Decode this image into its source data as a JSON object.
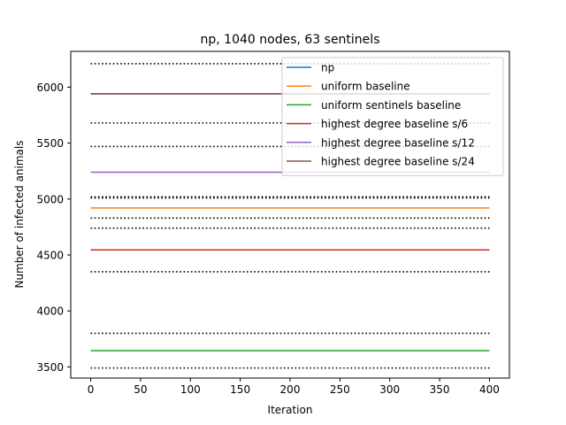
{
  "chart_data": {
    "type": "line",
    "title": "np, 1040 nodes, 63 sentinels",
    "xlabel": "Iteration",
    "ylabel": "Number of infected animals",
    "xlim": [
      -20,
      420
    ],
    "ylim": [
      3400,
      6320
    ],
    "x_ticks": [
      0,
      50,
      100,
      150,
      200,
      250,
      300,
      350,
      400
    ],
    "y_ticks": [
      3500,
      4000,
      4500,
      5000,
      5500,
      6000
    ],
    "x_range": [
      0,
      400
    ],
    "grid": false,
    "legend_position": "top-right",
    "series": [
      {
        "name": "np",
        "color": "#1f77b4",
        "value": 5940
      },
      {
        "name": "uniform baseline",
        "color": "#ff7f0e",
        "value": 4920
      },
      {
        "name": "uniform sentinels baseline",
        "color": "#2ca02c",
        "value": 3645
      },
      {
        "name": "highest degree baseline s/6",
        "color": "#d62728",
        "value": 4545
      },
      {
        "name": "highest degree baseline s/12",
        "color": "#9467bd",
        "value": 5240
      },
      {
        "name": "highest degree baseline s/24",
        "color": "#8c564b",
        "value": 5940
      }
    ],
    "reference_lines": {
      "color": "#000000",
      "style": "dotted",
      "values": [
        6210,
        5680,
        5470,
        5020,
        5010,
        4830,
        4740,
        4350,
        3800,
        3490
      ]
    }
  }
}
